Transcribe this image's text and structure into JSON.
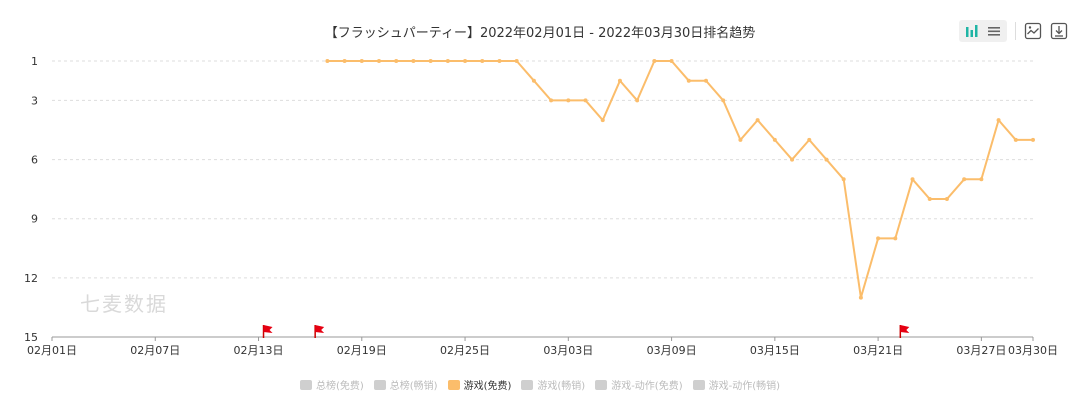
{
  "chart_data": {
    "type": "line",
    "title": "【フラッシュパーティー】2022年02月01日 - 2022年03月30日排名趋势",
    "x_tick_labels": [
      "02月01日",
      "02月07日",
      "02月13日",
      "02月19日",
      "02月25日",
      "03月03日",
      "03月09日",
      "03月15日",
      "03月21日",
      "03月27日",
      "03月30日"
    ],
    "y_ticks": [
      1,
      3,
      6,
      9,
      12,
      15
    ],
    "ylim": [
      1,
      15
    ],
    "y_inverted": true,
    "series": [
      {
        "name": "游戏(免费)",
        "color": "#fbbd6b",
        "x": [
          "02月17日",
          "02月18日",
          "02月19日",
          "02月20日",
          "02月21日",
          "02月22日",
          "02月23日",
          "02月24日",
          "02月25日",
          "02月26日",
          "02月27日",
          "02月28日",
          "03月01日",
          "03月02日",
          "03月03日",
          "03月04日",
          "03月05日",
          "03月06日",
          "03月07日",
          "03月08日",
          "03月09日",
          "03月10日",
          "03月11日",
          "03月12日",
          "03月13日",
          "03月14日",
          "03月15日",
          "03月16日",
          "03月17日",
          "03月18日",
          "03月19日",
          "03月20日",
          "03月21日",
          "03月22日",
          "03月23日",
          "03月24日",
          "03月25日",
          "03月26日",
          "03月27日",
          "03月28日",
          "03月29日",
          "03月30日"
        ],
        "values": [
          1,
          1,
          1,
          1,
          1,
          1,
          1,
          1,
          1,
          1,
          1,
          1,
          2,
          3,
          3,
          3,
          4,
          2,
          3,
          1,
          1,
          2,
          2,
          3,
          5,
          4,
          5,
          6,
          5,
          6,
          7,
          13,
          10,
          10,
          7,
          8,
          8,
          7,
          7,
          4,
          5,
          5
        ]
      }
    ],
    "flag_markers": [
      "02月13日",
      "02月16日",
      "03月22日"
    ],
    "legend": [
      {
        "label": "总榜(免费)",
        "active": false
      },
      {
        "label": "总榜(畅销)",
        "active": false
      },
      {
        "label": "游戏(免费)",
        "active": true
      },
      {
        "label": "游戏(畅销)",
        "active": false
      },
      {
        "label": "游戏-动作(免费)",
        "active": false
      },
      {
        "label": "游戏-动作(畅销)",
        "active": false
      }
    ],
    "grid": true,
    "legend_position": "bottom"
  },
  "watermark": "七麦数据",
  "toolbar": {
    "icons": [
      "bar-chart-icon",
      "list-icon",
      "image-icon",
      "download-icon"
    ],
    "accent": "#1fb5a5"
  }
}
